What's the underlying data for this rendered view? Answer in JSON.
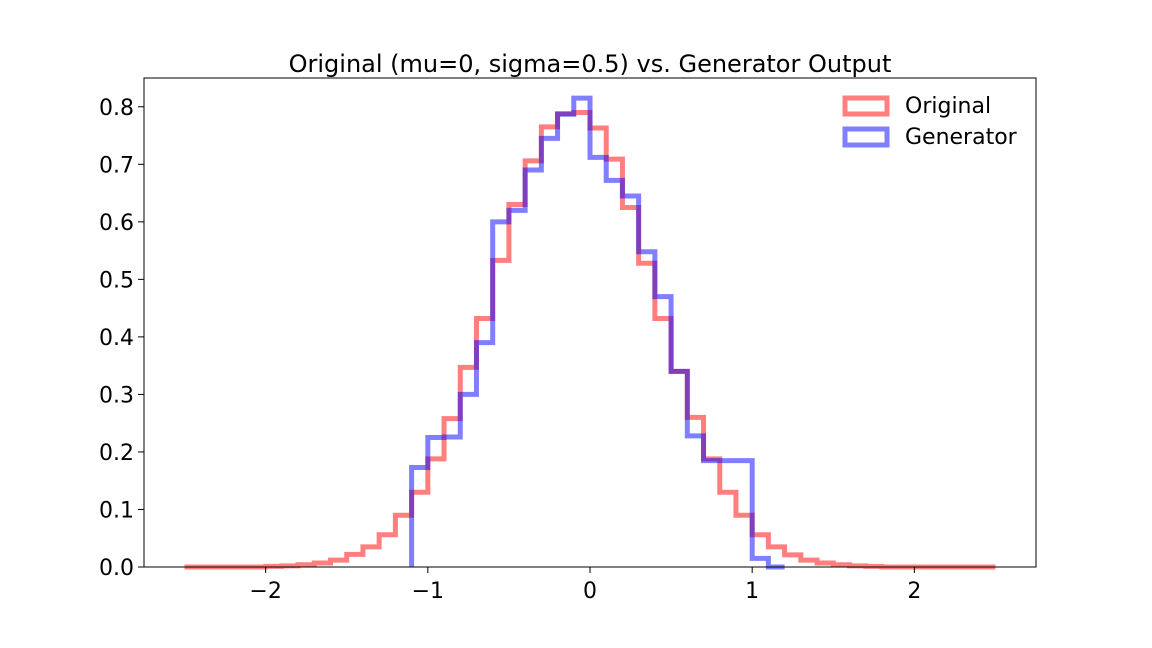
{
  "chart_data": {
    "type": "histogram",
    "title": "Original (mu=0, sigma=0.5) vs. Generator Output",
    "xlabel": "",
    "ylabel": "",
    "xlim": [
      -2.75,
      2.75
    ],
    "ylim": [
      0.0,
      0.85
    ],
    "xticks": [
      -2,
      -1,
      0,
      1,
      2
    ],
    "xtick_labels": [
      "−2",
      "−1",
      "0",
      "1",
      "2"
    ],
    "yticks": [
      0.0,
      0.1,
      0.2,
      0.3,
      0.4,
      0.5,
      0.6,
      0.7,
      0.8
    ],
    "ytick_labels": [
      "0.0",
      "0.1",
      "0.2",
      "0.3",
      "0.4",
      "0.5",
      "0.6",
      "0.7",
      "0.8"
    ],
    "grid": false,
    "legend_position": "top-right",
    "series": [
      {
        "name": "Original",
        "color": "#ff0000",
        "alpha": 0.5,
        "bin_edges": [
          -2.5,
          -2.4,
          -2.3,
          -2.2,
          -2.1,
          -2.0,
          -1.9,
          -1.8,
          -1.7,
          -1.6,
          -1.5,
          -1.4,
          -1.3,
          -1.2,
          -1.1,
          -1.0,
          -0.9,
          -0.8,
          -0.7,
          -0.6,
          -0.5,
          -0.4,
          -0.3,
          -0.2,
          -0.1,
          0.0,
          0.1,
          0.2,
          0.3,
          0.4,
          0.5,
          0.6,
          0.7,
          0.8,
          0.9,
          1.0,
          1.1,
          1.2,
          1.3,
          1.4,
          1.5,
          1.6,
          1.7,
          1.8,
          1.9,
          2.0,
          2.1,
          2.2,
          2.3,
          2.4,
          2.5
        ],
        "values": [
          0.0,
          0.0,
          0.0,
          0.0,
          0.0,
          0.001,
          0.002,
          0.004,
          0.007,
          0.012,
          0.022,
          0.035,
          0.056,
          0.09,
          0.13,
          0.188,
          0.258,
          0.347,
          0.432,
          0.533,
          0.63,
          0.706,
          0.765,
          0.788,
          0.79,
          0.763,
          0.709,
          0.625,
          0.528,
          0.432,
          0.34,
          0.26,
          0.188,
          0.13,
          0.09,
          0.056,
          0.035,
          0.021,
          0.012,
          0.007,
          0.004,
          0.002,
          0.001,
          0.0,
          0.0,
          0.0,
          0.0,
          0.0,
          0.0,
          0.0
        ]
      },
      {
        "name": "Generator",
        "color": "#0000ff",
        "alpha": 0.5,
        "bin_edges": [
          -1.1,
          -1.0,
          -0.9,
          -0.8,
          -0.7,
          -0.6,
          -0.5,
          -0.4,
          -0.3,
          -0.2,
          -0.1,
          0.0,
          0.1,
          0.2,
          0.3,
          0.4,
          0.5,
          0.6,
          0.7,
          0.8,
          0.9,
          1.0,
          1.1,
          1.2
        ],
        "values": [
          0.173,
          0.225,
          0.226,
          0.3,
          0.39,
          0.6,
          0.62,
          0.69,
          0.745,
          0.787,
          0.815,
          0.712,
          0.672,
          0.645,
          0.548,
          0.47,
          0.34,
          0.228,
          0.185,
          0.185,
          0.185,
          0.015,
          0.0
        ]
      }
    ]
  }
}
